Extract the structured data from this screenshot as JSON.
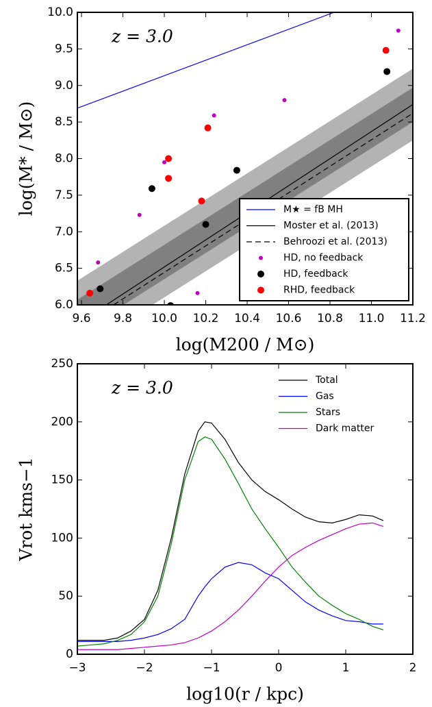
{
  "chart_data": [
    {
      "type": "scatter",
      "annotation": "z = 3.0",
      "xlabel": "log(M200 / M⊙)",
      "ylabel": "log(M* / M⊙)",
      "xlim": [
        9.58,
        11.2
      ],
      "ylim": [
        6,
        10
      ],
      "xticks": [
        9.6,
        9.8,
        {
          "value": 10,
          "label": "10.0"
        },
        10.2,
        10.4,
        10.6,
        10.8,
        {
          "value": 11,
          "label": "11.0"
        },
        11.2
      ],
      "yticks": [
        {
          "value": 6,
          "label": "6.0"
        },
        6.5,
        {
          "value": 7,
          "label": "7.0"
        },
        7.5,
        {
          "value": 8,
          "label": "8.0"
        },
        8.5,
        {
          "value": 9,
          "label": "9.0"
        },
        9.5,
        {
          "value": 10,
          "label": "10.0"
        }
      ],
      "bands": [
        {
          "color": "#b3b3b3",
          "x": [
            9.58,
            11.2
          ],
          "lower": [
            5.35,
            8.25
          ],
          "upper": [
            6.33,
            9.23
          ]
        },
        {
          "color": "#808080",
          "x": [
            9.58,
            11.2
          ],
          "lower": [
            5.6,
            8.5
          ],
          "upper": [
            6.07,
            8.97
          ]
        }
      ],
      "lines": [
        {
          "name": "M★ = fB MH",
          "color": "#0000ff",
          "dash": "solid",
          "x": [
            9.58,
            10.82
          ],
          "values": [
            8.69,
            10.0
          ]
        },
        {
          "name": "Moster et al. (2013)",
          "color": "#000000",
          "dash": "solid",
          "x": [
            9.72,
            11.2
          ],
          "values": [
            6.0,
            8.74
          ]
        },
        {
          "name": "Behroozi et al. (2013)",
          "color": "#000000",
          "dash": "dashed",
          "x": [
            9.755,
            11.2
          ],
          "values": [
            6.0,
            8.62
          ]
        }
      ],
      "series": [
        {
          "name": "HD, no feedback",
          "color": "#bf00bf",
          "marker_size": 3,
          "x": [
            11.13,
            10.58,
            10.24,
            10.0,
            9.88,
            9.68,
            10.16
          ],
          "values": [
            9.75,
            8.8,
            8.59,
            7.95,
            7.23,
            6.58,
            6.16
          ]
        },
        {
          "name": "HD, feedback",
          "color": "#000000",
          "marker_size": 5,
          "x": [
            11.075,
            10.35,
            9.94,
            10.2,
            9.69,
            10.03
          ],
          "values": [
            9.19,
            7.84,
            7.59,
            7.1,
            6.22,
            5.99
          ]
        },
        {
          "name": "RHD, feedback",
          "color": "#ff0000",
          "marker_size": 5,
          "x": [
            11.07,
            10.21,
            10.02,
            10.02,
            10.18,
            9.64
          ],
          "values": [
            9.48,
            8.42,
            8.0,
            7.73,
            7.42,
            6.16
          ]
        }
      ],
      "legend": "lower right"
    },
    {
      "type": "line",
      "annotation": "z = 3.0",
      "xlabel": "log10(r / kpc)",
      "ylabel": "Vrot kms−1",
      "xlim": [
        -3,
        2
      ],
      "ylim": [
        0,
        250
      ],
      "xticks": [
        {
          "value": -3,
          "label": "−3"
        },
        {
          "value": -2,
          "label": "−2"
        },
        {
          "value": -1,
          "label": "−1"
        },
        0,
        1,
        2
      ],
      "yticks": [
        0,
        50,
        100,
        150,
        200,
        250
      ],
      "x": [
        -3,
        -2.8,
        -2.6,
        -2.4,
        -2.2,
        -2.0,
        -1.8,
        -1.6,
        -1.4,
        -1.2,
        -1.1,
        -1.0,
        -0.8,
        -0.6,
        -0.4,
        -0.2,
        0,
        0.2,
        0.4,
        0.6,
        0.8,
        1.0,
        1.2,
        1.4,
        1.56
      ],
      "series": [
        {
          "name": "Total",
          "color": "#000000",
          "values": [
            12,
            12,
            12,
            14,
            20,
            30,
            55,
            100,
            155,
            192,
            200,
            199,
            185,
            165,
            150,
            140,
            133,
            125,
            118,
            114,
            113,
            116,
            120,
            119,
            115
          ]
        },
        {
          "name": "Gas",
          "color": "#0000ff",
          "values": [
            11,
            11,
            11,
            11,
            12,
            14,
            17,
            22,
            30,
            50,
            58,
            65,
            75,
            79,
            77,
            70,
            65,
            55,
            45,
            38,
            33,
            29,
            28,
            26,
            26
          ]
        },
        {
          "name": "Stars",
          "color": "#008000",
          "values": [
            7,
            8,
            9,
            12,
            17,
            28,
            50,
            95,
            150,
            183,
            187,
            185,
            168,
            147,
            125,
            108,
            92,
            75,
            62,
            50,
            42,
            35,
            30,
            24,
            21
          ]
        },
        {
          "name": "Dark matter",
          "color": "#bf00bf",
          "values": [
            4,
            4,
            4,
            4,
            5,
            6,
            7,
            8,
            10,
            14,
            17,
            20,
            28,
            38,
            50,
            63,
            75,
            85,
            92,
            98,
            103,
            108,
            112,
            113,
            110
          ]
        }
      ],
      "legend": "upper right"
    }
  ]
}
